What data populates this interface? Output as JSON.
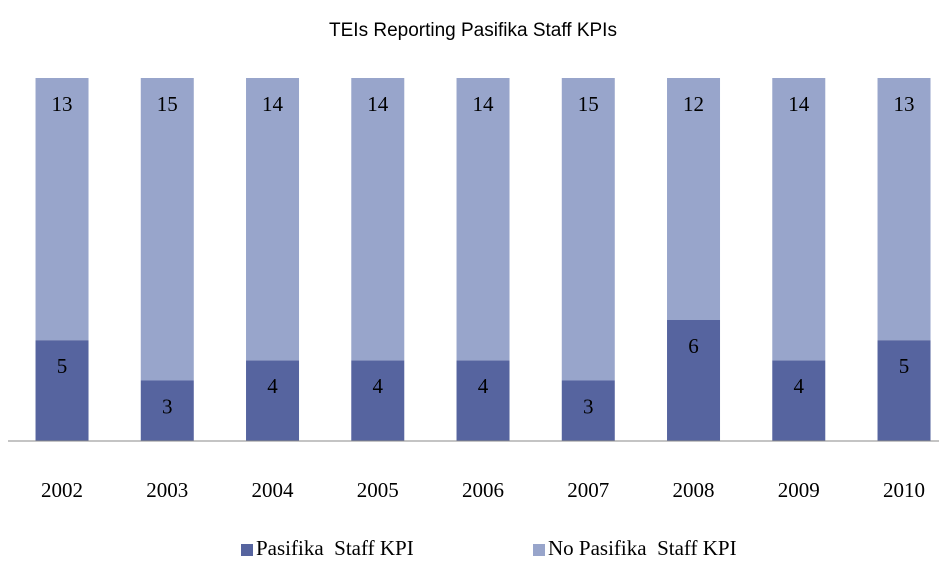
{
  "chart_data": {
    "type": "stacked-bar",
    "title": "TEIs Reporting Pasifika Staff KPIs",
    "categories": [
      "2002",
      "2003",
      "2004",
      "2005",
      "2006",
      "2007",
      "2008",
      "2009",
      "2010"
    ],
    "series": [
      {
        "name": "Pasifika  Staff KPI",
        "color": "#56649f",
        "values": [
          5,
          3,
          4,
          4,
          4,
          3,
          6,
          4,
          5
        ]
      },
      {
        "name": "No Pasifika  Staff KPI",
        "color": "#98a5cb",
        "values": [
          13,
          15,
          14,
          14,
          14,
          15,
          12,
          14,
          13
        ]
      }
    ],
    "ylim": [
      0,
      18
    ],
    "legend": "bottom"
  }
}
